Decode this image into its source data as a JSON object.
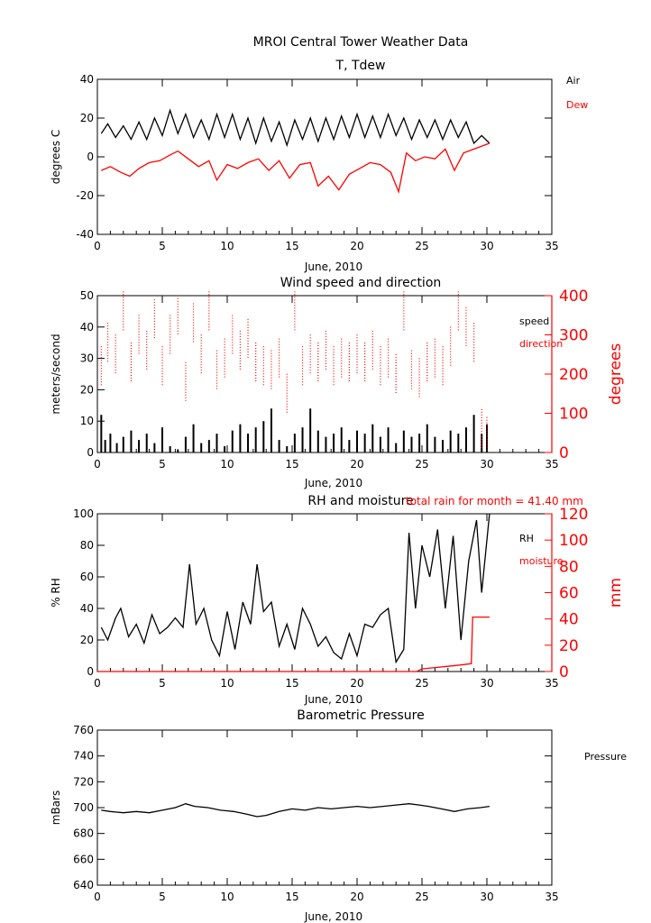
{
  "page_title": "MROI Central Tower Weather Data",
  "colors": {
    "primary": "#000000",
    "secondary": "#ff0000"
  },
  "chart_data": [
    {
      "type": "line",
      "title": "T, Tdew",
      "xlabel": "June, 2010",
      "ylabel": "degrees C",
      "xlim": [
        0,
        35
      ],
      "ylim": [
        -40,
        40
      ],
      "x_ticks": [
        0,
        5,
        10,
        15,
        20,
        25,
        30,
        35
      ],
      "y_ticks": [
        -40,
        -20,
        0,
        20,
        40
      ],
      "legend": [
        "Air",
        "Dew"
      ],
      "legend_position": "right-outside",
      "series": [
        {
          "name": "Air",
          "color": "#000000",
          "x": [
            0.3,
            0.8,
            1.4,
            2.0,
            2.6,
            3.2,
            3.8,
            4.4,
            5.0,
            5.6,
            6.2,
            6.8,
            7.4,
            8.0,
            8.6,
            9.2,
            9.8,
            10.4,
            11.0,
            11.6,
            12.2,
            12.8,
            13.4,
            14.0,
            14.6,
            15.2,
            15.8,
            16.4,
            17.0,
            17.6,
            18.2,
            18.8,
            19.4,
            20.0,
            20.6,
            21.2,
            21.8,
            22.4,
            23.0,
            23.6,
            24.2,
            24.8,
            25.4,
            26.0,
            26.6,
            27.2,
            27.8,
            28.4,
            29.0,
            29.6,
            30.2
          ],
          "y": [
            12,
            17,
            10,
            16,
            9,
            18,
            9,
            20,
            11,
            24,
            12,
            22,
            10,
            19,
            9,
            22,
            10,
            22,
            9,
            20,
            7,
            20,
            8,
            18,
            6,
            19,
            9,
            20,
            8,
            20,
            9,
            21,
            10,
            22,
            10,
            21,
            10,
            22,
            11,
            20,
            9,
            19,
            10,
            19,
            9,
            19,
            10,
            18,
            7,
            11,
            7
          ]
        },
        {
          "name": "Dew",
          "color": "#ff0000",
          "x": [
            0.3,
            1.0,
            1.8,
            2.5,
            3.2,
            4.0,
            4.8,
            5.6,
            6.2,
            7.0,
            7.8,
            8.6,
            9.2,
            10.0,
            10.8,
            11.6,
            12.4,
            13.2,
            14.0,
            14.8,
            15.6,
            16.4,
            17.0,
            17.8,
            18.6,
            19.4,
            20.2,
            21.0,
            21.8,
            22.6,
            23.2,
            23.8,
            24.5,
            25.2,
            26.0,
            26.8,
            27.5,
            28.2,
            29.0,
            29.8,
            30.2
          ],
          "y": [
            -7,
            -5,
            -8,
            -10,
            -6,
            -3,
            -2,
            1,
            3,
            -1,
            -5,
            -2,
            -12,
            -4,
            -6,
            -3,
            -1,
            -7,
            -2,
            -11,
            -4,
            -3,
            -15,
            -10,
            -17,
            -9,
            -6,
            -3,
            -4,
            -8,
            -18,
            2,
            -2,
            0,
            -1,
            4,
            -7,
            2,
            4,
            6,
            7
          ]
        }
      ]
    },
    {
      "type": "scatter",
      "title": "Wind speed and direction",
      "xlabel": "June, 2010",
      "ylabel": "meters/second",
      "y2label": "degrees",
      "xlim": [
        0,
        35
      ],
      "ylim": [
        0,
        50
      ],
      "y2lim": [
        0,
        400
      ],
      "x_ticks": [
        0,
        5,
        10,
        15,
        20,
        25,
        30,
        35
      ],
      "y_ticks": [
        0,
        10,
        20,
        30,
        40,
        50
      ],
      "y2_ticks": [
        0,
        100,
        200,
        300,
        400
      ],
      "legend": [
        "speed",
        "direction"
      ],
      "legend_position": "right-inside",
      "series": [
        {
          "name": "speed",
          "axis": "left",
          "color": "#000000",
          "x": [
            0.3,
            0.6,
            1.0,
            1.5,
            2.0,
            2.6,
            3.2,
            3.8,
            4.4,
            5.0,
            5.6,
            6.2,
            6.8,
            7.4,
            8.0,
            8.6,
            9.2,
            9.8,
            10.4,
            11.0,
            11.6,
            12.2,
            12.8,
            13.4,
            14.0,
            14.6,
            15.2,
            15.8,
            16.4,
            17.0,
            17.6,
            18.2,
            18.8,
            19.4,
            20.0,
            20.6,
            21.2,
            21.8,
            22.4,
            23.0,
            23.6,
            24.2,
            24.8,
            25.4,
            26.0,
            26.6,
            27.2,
            27.8,
            28.4,
            29.0,
            29.6,
            30.0
          ],
          "y": [
            12,
            4,
            6,
            3,
            5,
            7,
            4,
            6,
            3,
            8,
            2,
            1,
            5,
            9,
            3,
            4,
            6,
            2,
            7,
            9,
            6,
            8,
            10,
            14,
            4,
            2,
            6,
            8,
            14,
            7,
            5,
            6,
            8,
            4,
            7,
            6,
            9,
            5,
            8,
            3,
            7,
            5,
            6,
            9,
            5,
            4,
            7,
            6,
            8,
            12,
            6,
            9
          ]
        },
        {
          "name": "direction",
          "axis": "right",
          "color": "#ff0000",
          "x": [
            0.3,
            0.8,
            1.4,
            2.0,
            2.6,
            3.2,
            3.8,
            4.4,
            5.0,
            5.6,
            6.2,
            6.8,
            7.4,
            8.0,
            8.6,
            9.2,
            9.8,
            10.4,
            11.0,
            11.6,
            12.2,
            12.8,
            13.4,
            14.0,
            14.6,
            15.2,
            15.8,
            16.4,
            17.0,
            17.6,
            18.2,
            18.8,
            19.4,
            20.0,
            20.6,
            21.2,
            21.8,
            22.4,
            23.0,
            23.6,
            24.2,
            24.8,
            25.4,
            26.0,
            26.6,
            27.2,
            27.8,
            28.4,
            29.0,
            29.6,
            30.0
          ],
          "y": [
            220,
            280,
            250,
            360,
            230,
            300,
            260,
            340,
            220,
            300,
            350,
            180,
            330,
            250,
            360,
            210,
            240,
            300,
            260,
            290,
            230,
            220,
            210,
            240,
            150,
            360,
            220,
            250,
            230,
            260,
            220,
            240,
            230,
            250,
            230,
            260,
            220,
            240,
            200,
            360,
            210,
            190,
            230,
            240,
            220,
            270,
            360,
            320,
            280,
            60,
            40
          ]
        }
      ]
    },
    {
      "type": "line",
      "title": "RH and moisture",
      "annotation": "total rain for month =     41.40 mm",
      "xlabel": "June, 2010",
      "ylabel": "% RH",
      "y2label": "mm",
      "xlim": [
        0,
        35
      ],
      "ylim": [
        0,
        100
      ],
      "y2lim": [
        0,
        120
      ],
      "x_ticks": [
        0,
        5,
        10,
        15,
        20,
        25,
        30,
        35
      ],
      "y_ticks": [
        0,
        20,
        40,
        60,
        80,
        100
      ],
      "y2_ticks": [
        0,
        20,
        40,
        60,
        80,
        100,
        120
      ],
      "legend": [
        "RH",
        "moisture"
      ],
      "legend_position": "right-inside",
      "series": [
        {
          "name": "RH",
          "axis": "left",
          "color": "#000000",
          "x": [
            0.3,
            0.8,
            1.4,
            1.8,
            2.4,
            3.0,
            3.6,
            4.2,
            4.8,
            5.4,
            6.0,
            6.6,
            7.1,
            7.6,
            8.2,
            8.8,
            9.4,
            10.0,
            10.6,
            11.2,
            11.8,
            12.3,
            12.8,
            13.4,
            14.0,
            14.6,
            15.2,
            15.8,
            16.4,
            17.0,
            17.6,
            18.2,
            18.8,
            19.4,
            20.0,
            20.6,
            21.2,
            21.8,
            22.4,
            23.0,
            23.6,
            24.0,
            24.5,
            25.0,
            25.6,
            26.2,
            26.8,
            27.4,
            28.0,
            28.6,
            29.2,
            29.6,
            30.2
          ],
          "y": [
            28,
            20,
            34,
            40,
            22,
            30,
            18,
            36,
            24,
            28,
            34,
            28,
            68,
            30,
            40,
            20,
            10,
            38,
            14,
            44,
            30,
            68,
            38,
            44,
            16,
            30,
            14,
            40,
            30,
            16,
            22,
            12,
            8,
            24,
            10,
            30,
            28,
            36,
            40,
            6,
            14,
            88,
            40,
            80,
            60,
            90,
            40,
            86,
            20,
            70,
            96,
            50,
            100
          ]
        },
        {
          "name": "moisture",
          "axis": "right",
          "color": "#ff0000",
          "x": [
            0,
            24.6,
            25.0,
            26.0,
            27.0,
            28.0,
            28.8,
            28.9,
            30.0,
            30.2
          ],
          "y": [
            0,
            0,
            2,
            3,
            4,
            5,
            6,
            41.4,
            41.4,
            41.4
          ]
        }
      ]
    },
    {
      "type": "line",
      "title": "Barometric Pressure",
      "xlabel": "June, 2010",
      "ylabel": "mBars",
      "xlim": [
        0,
        35
      ],
      "ylim": [
        640,
        760
      ],
      "x_ticks": [
        0,
        5,
        10,
        15,
        20,
        25,
        30,
        35
      ],
      "y_ticks": [
        640,
        660,
        680,
        700,
        720,
        740,
        760
      ],
      "legend": [
        "Pressure"
      ],
      "legend_position": "right-outside",
      "series": [
        {
          "name": "Pressure",
          "color": "#000000",
          "x": [
            0.3,
            1.0,
            2.0,
            3.0,
            4.0,
            5.0,
            6.0,
            6.8,
            7.5,
            8.5,
            9.5,
            10.5,
            11.5,
            12.3,
            13.0,
            14.0,
            15.0,
            16.0,
            17.0,
            18.0,
            19.0,
            20.0,
            21.0,
            22.0,
            23.0,
            24.0,
            24.8,
            25.5,
            26.5,
            27.5,
            28.5,
            29.5,
            30.2
          ],
          "y": [
            698,
            697,
            696,
            697,
            696,
            698,
            700,
            703,
            701,
            700,
            698,
            697,
            695,
            693,
            694,
            697,
            699,
            698,
            700,
            699,
            700,
            701,
            700,
            701,
            702,
            703,
            702,
            701,
            699,
            697,
            699,
            700,
            701
          ]
        }
      ]
    }
  ]
}
